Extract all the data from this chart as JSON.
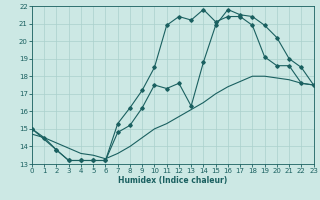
{
  "xlabel": "Humidex (Indice chaleur)",
  "xlim": [
    0,
    23
  ],
  "ylim": [
    13,
    22
  ],
  "xticks": [
    0,
    1,
    2,
    3,
    4,
    5,
    6,
    7,
    8,
    9,
    10,
    11,
    12,
    13,
    14,
    15,
    16,
    17,
    18,
    19,
    20,
    21,
    22,
    23
  ],
  "yticks": [
    13,
    14,
    15,
    16,
    17,
    18,
    19,
    20,
    21,
    22
  ],
  "bg_color": "#cce8e4",
  "grid_color": "#aad0cc",
  "line_color": "#1a6060",
  "line1_x": [
    0,
    1,
    2,
    3,
    4,
    5,
    6,
    7,
    8,
    9,
    10,
    11,
    12,
    13,
    14,
    15,
    16,
    17,
    18,
    19,
    20,
    21,
    22,
    23
  ],
  "line1_y": [
    15.0,
    14.5,
    13.8,
    13.2,
    13.2,
    13.2,
    13.2,
    14.8,
    15.2,
    16.2,
    17.5,
    17.3,
    17.6,
    16.3,
    18.8,
    20.9,
    21.8,
    21.5,
    21.4,
    20.9,
    20.2,
    19.0,
    18.5,
    17.5
  ],
  "line2_x": [
    0,
    2,
    3,
    4,
    5,
    6,
    7,
    8,
    9,
    10,
    11,
    12,
    13,
    14,
    15,
    16,
    17,
    18,
    19,
    20,
    21,
    22,
    23
  ],
  "line2_y": [
    15.0,
    13.8,
    13.2,
    13.2,
    13.2,
    13.2,
    15.3,
    16.2,
    17.2,
    18.5,
    20.9,
    21.4,
    21.2,
    21.8,
    21.1,
    21.4,
    21.4,
    20.9,
    19.1,
    18.6,
    18.6,
    17.6,
    17.5
  ],
  "line3_x": [
    0,
    1,
    2,
    3,
    4,
    5,
    6,
    7,
    8,
    9,
    10,
    11,
    12,
    13,
    14,
    15,
    16,
    17,
    18,
    19,
    20,
    21,
    22,
    23
  ],
  "line3_y": [
    14.7,
    14.5,
    14.2,
    13.9,
    13.6,
    13.5,
    13.3,
    13.6,
    14.0,
    14.5,
    15.0,
    15.3,
    15.7,
    16.1,
    16.5,
    17.0,
    17.4,
    17.7,
    18.0,
    18.0,
    17.9,
    17.8,
    17.6,
    17.5
  ]
}
